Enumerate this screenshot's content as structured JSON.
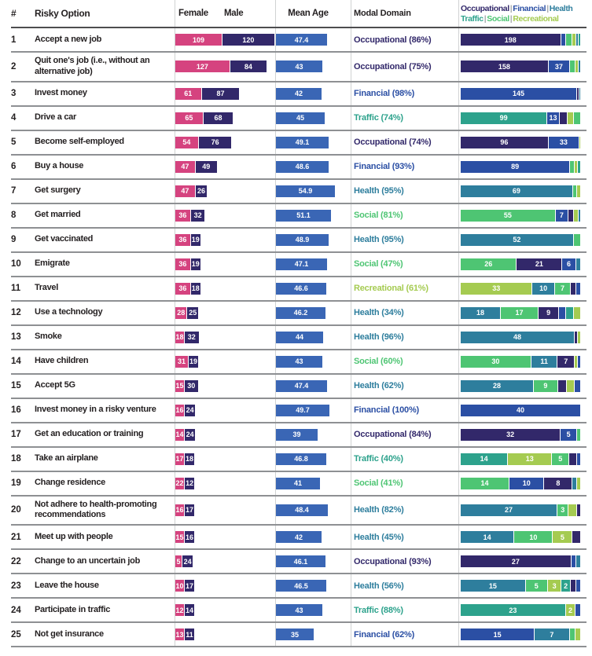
{
  "chart_data": {
    "type": "table",
    "columns": {
      "rank": "#",
      "option": "Risky Option",
      "female": "Female",
      "male": "Male",
      "mean_age": "Mean Age",
      "modal_domain": "Modal Domain"
    },
    "legend_row1": [
      "Occupational",
      "Financial",
      "Health"
    ],
    "legend_row2": [
      "Traffic",
      "Social",
      "Recreational"
    ],
    "colors": {
      "female": "#D5437F",
      "male": "#32286A",
      "mean_age": "#3A66B5",
      "occupational": "#32286A",
      "financial": "#2B4FA4",
      "health": "#2E7E9D",
      "traffic": "#2DA28C",
      "social": "#4EC573",
      "recreational": "#A5CB51"
    },
    "rows": [
      {
        "rank": "1",
        "option": "Accept a new job",
        "female": 109,
        "male": 120,
        "mean_age": "47.4",
        "age": 47.4,
        "modal": "Occupational (86%)",
        "modal_domain": "occupational",
        "segments": [
          [
            "occupational",
            198,
            "198"
          ],
          [
            "financial",
            9,
            ""
          ],
          [
            "social",
            11,
            ""
          ],
          [
            "recreational",
            6,
            ""
          ],
          [
            "health",
            3,
            ""
          ],
          [
            "traffic",
            3,
            ""
          ]
        ]
      },
      {
        "rank": "2",
        "option": "Quit one's job (i.e., without an alternative job)",
        "female": 127,
        "male": 84,
        "mean_age": "43",
        "age": 43,
        "modal": "Occupational (75%)",
        "modal_domain": "occupational",
        "segments": [
          [
            "occupational",
            158,
            "158"
          ],
          [
            "financial",
            37,
            "37"
          ],
          [
            "social",
            9,
            ""
          ],
          [
            "recreational",
            4,
            ""
          ],
          [
            "health",
            3,
            ""
          ]
        ]
      },
      {
        "rank": "3",
        "option": "Invest money",
        "female": 61,
        "male": 87,
        "mean_age": "42",
        "age": 42,
        "modal": "Financial (98%)",
        "modal_domain": "financial",
        "segments": [
          [
            "financial",
            145,
            "145"
          ],
          [
            "occupational",
            2,
            ""
          ],
          [
            "health",
            1,
            ""
          ]
        ]
      },
      {
        "rank": "4",
        "option": "Drive a car",
        "female": 65,
        "male": 68,
        "mean_age": "45",
        "age": 45,
        "modal": "Traffic (74%)",
        "modal_domain": "traffic",
        "segments": [
          [
            "traffic",
            99,
            "99"
          ],
          [
            "financial",
            13,
            "13"
          ],
          [
            "occupational",
            8,
            ""
          ],
          [
            "recreational",
            7,
            ""
          ],
          [
            "social",
            7,
            ""
          ]
        ]
      },
      {
        "rank": "5",
        "option": "Become self-employed",
        "female": 54,
        "male": 76,
        "mean_age": "49.1",
        "age": 49.1,
        "modal": "Occupational (74%)",
        "modal_domain": "occupational",
        "segments": [
          [
            "occupational",
            96,
            "96"
          ],
          [
            "financial",
            33,
            "33"
          ],
          [
            "recreational",
            1,
            ""
          ]
        ]
      },
      {
        "rank": "6",
        "option": "Buy a house",
        "female": 47,
        "male": 49,
        "mean_age": "48.6",
        "age": 48.6,
        "modal": "Financial (93%)",
        "modal_domain": "financial",
        "segments": [
          [
            "financial",
            89,
            "89"
          ],
          [
            "social",
            3,
            ""
          ],
          [
            "recreational",
            2,
            ""
          ],
          [
            "traffic",
            2,
            ""
          ]
        ]
      },
      {
        "rank": "7",
        "option": "Get surgery",
        "female": 47,
        "male": 26,
        "mean_age": "54.9",
        "age": 54.9,
        "modal": "Health (95%)",
        "modal_domain": "health",
        "segments": [
          [
            "health",
            69,
            "69"
          ],
          [
            "social",
            2,
            ""
          ],
          [
            "recreational",
            2,
            ""
          ]
        ]
      },
      {
        "rank": "8",
        "option": "Get married",
        "female": 36,
        "male": 32,
        "mean_age": "51.1",
        "age": 51.1,
        "modal": "Social (81%)",
        "modal_domain": "social",
        "segments": [
          [
            "social",
            55,
            "55"
          ],
          [
            "financial",
            7,
            "7"
          ],
          [
            "occupational",
            3,
            ""
          ],
          [
            "recreational",
            2,
            ""
          ],
          [
            "health",
            1,
            ""
          ]
        ]
      },
      {
        "rank": "9",
        "option": "Get vaccinated",
        "female": 36,
        "male": 19,
        "mean_age": "48.9",
        "age": 48.9,
        "modal": "Health (95%)",
        "modal_domain": "health",
        "segments": [
          [
            "health",
            52,
            "52"
          ],
          [
            "social",
            3,
            ""
          ]
        ]
      },
      {
        "rank": "10",
        "option": "Emigrate",
        "female": 36,
        "male": 19,
        "mean_age": "47.1",
        "age": 47.1,
        "modal": "Social (47%)",
        "modal_domain": "social",
        "segments": [
          [
            "social",
            26,
            "26"
          ],
          [
            "occupational",
            21,
            "21"
          ],
          [
            "financial",
            6,
            "6"
          ],
          [
            "health",
            2,
            ""
          ]
        ]
      },
      {
        "rank": "11",
        "option": "Travel",
        "female": 36,
        "male": 18,
        "mean_age": "46.6",
        "age": 46.6,
        "modal": "Recreational (61%)",
        "modal_domain": "recreational",
        "segments": [
          [
            "recreational",
            33,
            "33"
          ],
          [
            "health",
            10,
            "10"
          ],
          [
            "social",
            7,
            "7"
          ],
          [
            "occupational",
            2,
            ""
          ],
          [
            "financial",
            2,
            ""
          ]
        ]
      },
      {
        "rank": "12",
        "option": "Use a technology",
        "female": 28,
        "male": 25,
        "mean_age": "46.2",
        "age": 46.2,
        "modal": "Health (34%)",
        "modal_domain": "health",
        "segments": [
          [
            "health",
            18,
            "18"
          ],
          [
            "social",
            17,
            "17"
          ],
          [
            "occupational",
            9,
            "9"
          ],
          [
            "financial",
            3,
            ""
          ],
          [
            "traffic",
            3,
            ""
          ],
          [
            "recreational",
            3,
            ""
          ]
        ]
      },
      {
        "rank": "13",
        "option": "Smoke",
        "female": 18,
        "male": 32,
        "mean_age": "44",
        "age": 44,
        "modal": "Health (96%)",
        "modal_domain": "health",
        "segments": [
          [
            "health",
            48,
            "48"
          ],
          [
            "occupational",
            1,
            ""
          ],
          [
            "recreational",
            1,
            ""
          ]
        ]
      },
      {
        "rank": "14",
        "option": "Have children",
        "female": 31,
        "male": 19,
        "mean_age": "43",
        "age": 43,
        "modal": "Social (60%)",
        "modal_domain": "social",
        "segments": [
          [
            "social",
            30,
            "30"
          ],
          [
            "health",
            11,
            "11"
          ],
          [
            "occupational",
            7,
            "7"
          ],
          [
            "recreational",
            1,
            ""
          ],
          [
            "financial",
            1,
            ""
          ]
        ]
      },
      {
        "rank": "15",
        "option": "Accept 5G",
        "female": 15,
        "male": 30,
        "mean_age": "47.4",
        "age": 47.4,
        "modal": "Health (62%)",
        "modal_domain": "health",
        "segments": [
          [
            "health",
            28,
            "28"
          ],
          [
            "social",
            9,
            "9"
          ],
          [
            "occupational",
            3,
            ""
          ],
          [
            "recreational",
            3,
            ""
          ],
          [
            "financial",
            2,
            ""
          ]
        ]
      },
      {
        "rank": "16",
        "option": "Invest money in a risky venture",
        "female": 16,
        "male": 24,
        "mean_age": "49.7",
        "age": 49.7,
        "modal": "Financial (100%)",
        "modal_domain": "financial",
        "segments": [
          [
            "financial",
            40,
            "40"
          ]
        ]
      },
      {
        "rank": "17",
        "option": "Get an education or training",
        "female": 14,
        "male": 24,
        "mean_age": "39",
        "age": 39,
        "modal": "Occupational (84%)",
        "modal_domain": "occupational",
        "segments": [
          [
            "occupational",
            32,
            "32"
          ],
          [
            "financial",
            5,
            "5"
          ],
          [
            "social",
            1,
            ""
          ]
        ]
      },
      {
        "rank": "18",
        "option": "Take an airplane",
        "female": 17,
        "male": 18,
        "mean_age": "46.8",
        "age": 46.8,
        "modal": "Traffic (40%)",
        "modal_domain": "traffic",
        "segments": [
          [
            "traffic",
            14,
            "14"
          ],
          [
            "recreational",
            13,
            "13"
          ],
          [
            "social",
            5,
            "5"
          ],
          [
            "occupational",
            2,
            ""
          ],
          [
            "financial",
            1,
            ""
          ]
        ]
      },
      {
        "rank": "19",
        "option": "Change residence",
        "female": 22,
        "male": 12,
        "mean_age": "41",
        "age": 41,
        "modal": "Social (41%)",
        "modal_domain": "social",
        "segments": [
          [
            "social",
            14,
            "14"
          ],
          [
            "financial",
            10,
            "10"
          ],
          [
            "occupational",
            8,
            "8"
          ],
          [
            "health",
            1,
            ""
          ],
          [
            "recreational",
            1,
            ""
          ]
        ]
      },
      {
        "rank": "20",
        "option": "Not adhere to health-promoting recommendations",
        "female": 16,
        "male": 17,
        "mean_age": "48.4",
        "age": 48.4,
        "modal": "Health (82%)",
        "modal_domain": "health",
        "segments": [
          [
            "health",
            27,
            "27"
          ],
          [
            "social",
            3,
            "3"
          ],
          [
            "recreational",
            2,
            ""
          ],
          [
            "occupational",
            1,
            ""
          ]
        ]
      },
      {
        "rank": "21",
        "option": "Meet up with people",
        "female": 15,
        "male": 16,
        "mean_age": "42",
        "age": 42,
        "modal": "Health (45%)",
        "modal_domain": "health",
        "segments": [
          [
            "health",
            14,
            "14"
          ],
          [
            "social",
            10,
            "10"
          ],
          [
            "recreational",
            5,
            "5"
          ],
          [
            "occupational",
            2,
            ""
          ]
        ]
      },
      {
        "rank": "22",
        "option": "Change to an uncertain job",
        "female": 5,
        "male": 24,
        "mean_age": "46.1",
        "age": 46.1,
        "modal": "Occupational (93%)",
        "modal_domain": "occupational",
        "segments": [
          [
            "occupational",
            27,
            "27"
          ],
          [
            "financial",
            1,
            ""
          ],
          [
            "health",
            1,
            ""
          ]
        ]
      },
      {
        "rank": "23",
        "option": "Leave the house",
        "female": 10,
        "male": 17,
        "mean_age": "46.5",
        "age": 46.5,
        "modal": "Health (56%)",
        "modal_domain": "health",
        "segments": [
          [
            "health",
            15,
            "15"
          ],
          [
            "social",
            5,
            "5"
          ],
          [
            "recreational",
            3,
            "3"
          ],
          [
            "traffic",
            2,
            "2"
          ],
          [
            "occupational",
            1,
            ""
          ],
          [
            "financial",
            1,
            ""
          ]
        ]
      },
      {
        "rank": "24",
        "option": "Participate in traffic",
        "female": 12,
        "male": 14,
        "mean_age": "43",
        "age": 43,
        "modal": "Traffic (88%)",
        "modal_domain": "traffic",
        "segments": [
          [
            "traffic",
            23,
            "23"
          ],
          [
            "recreational",
            2,
            "2"
          ],
          [
            "financial",
            1,
            ""
          ]
        ]
      },
      {
        "rank": "25",
        "option": "Not get insurance",
        "female": 13,
        "male": 11,
        "mean_age": "35",
        "age": 35,
        "modal": "Financial (62%)",
        "modal_domain": "financial",
        "segments": [
          [
            "financial",
            15,
            "15"
          ],
          [
            "health",
            7,
            "7"
          ],
          [
            "social",
            1,
            ""
          ],
          [
            "recreational",
            1,
            ""
          ]
        ]
      }
    ]
  }
}
